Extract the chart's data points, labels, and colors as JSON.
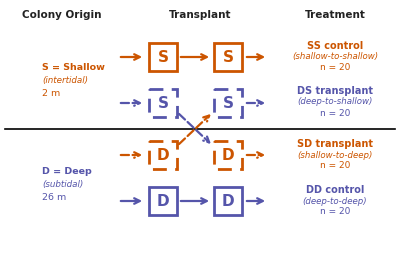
{
  "bg_color": "#ffffff",
  "orange": "#cc5500",
  "purple": "#5555aa",
  "header_color": "#222222",
  "col1": "Colony Origin",
  "col2": "Transplant",
  "col3": "Treatment",
  "treatments": [
    {
      "name": "SS control",
      "sub": "(shallow-to-shallow)",
      "n": "n = 20",
      "color": "orange"
    },
    {
      "name": "DS transplant",
      "sub": "(deep-to-shallow)",
      "n": "n = 20",
      "color": "purple"
    },
    {
      "name": "SD transplant",
      "sub": "(shallow-to-deep)",
      "n": "n = 20",
      "color": "orange"
    },
    {
      "name": "DD control",
      "sub": "(deep-to-deep)",
      "n": "n = 20",
      "color": "purple"
    }
  ]
}
